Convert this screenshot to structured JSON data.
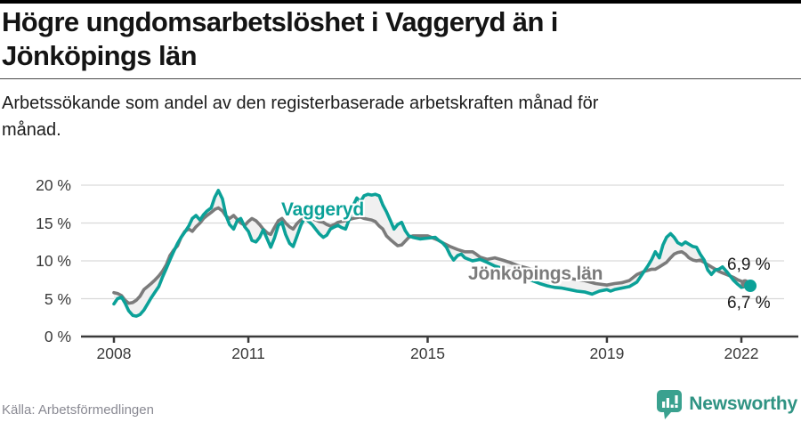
{
  "header": {
    "title": "Högre ungdomsarbetslöshet i Vaggeryd än i Jönköpings län",
    "subtitle": "Arbetssökande som andel av den registerbaserade arbetskraften månad för månad."
  },
  "footer": {
    "source": "Källa: Arbetsförmedlingen",
    "brand": "Newsworthy"
  },
  "colors": {
    "vaggeryd_line": "#0ba198",
    "jonkoping_line": "#7b7b7b",
    "band_fill": "#f0f0f0",
    "gridline": "#d9d9d9",
    "axis": "#3a3a3a",
    "brand_teal": "#3aa18f"
  },
  "chart_data": {
    "type": "line",
    "title": "Högre ungdomsarbetslöshet i Vaggeryd än i Jönköpings län",
    "xlabel": "",
    "ylabel": "",
    "xlim": [
      2008,
      2022.4
    ],
    "ylim": [
      0,
      20
    ],
    "grid": true,
    "legend_position": "inline-labels",
    "y_axis": {
      "unit": "%",
      "ticks": [
        {
          "value": 0,
          "label": "0 %"
        },
        {
          "value": 5,
          "label": "5 %"
        },
        {
          "value": 10,
          "label": "10 %"
        },
        {
          "value": 15,
          "label": "15 %"
        },
        {
          "value": 20,
          "label": "20 %"
        }
      ]
    },
    "x_axis": {
      "ticks": [
        {
          "year": 2008,
          "label": "2008"
        },
        {
          "year": 2011,
          "label": "2011"
        },
        {
          "year": 2015,
          "label": "2015"
        },
        {
          "year": 2019,
          "label": "2019"
        },
        {
          "year": 2022,
          "label": "2022"
        }
      ]
    },
    "series": [
      {
        "name": "Vaggeryd",
        "color": "#0ba198",
        "last_value": 6.7,
        "last_value_label": "6,7 %",
        "points": [
          [
            2008.0,
            4.3
          ],
          [
            2008.08,
            5.0
          ],
          [
            2008.17,
            5.2
          ],
          [
            2008.25,
            4.4
          ],
          [
            2008.33,
            3.4
          ],
          [
            2008.42,
            2.8
          ],
          [
            2008.5,
            2.7
          ],
          [
            2008.58,
            2.9
          ],
          [
            2008.67,
            3.5
          ],
          [
            2008.75,
            4.3
          ],
          [
            2008.83,
            5.1
          ],
          [
            2008.92,
            5.9
          ],
          [
            2009.0,
            6.6
          ],
          [
            2009.08,
            7.8
          ],
          [
            2009.17,
            9.0
          ],
          [
            2009.25,
            10.1
          ],
          [
            2009.33,
            11.2
          ],
          [
            2009.42,
            12.3
          ],
          [
            2009.5,
            13.1
          ],
          [
            2009.58,
            13.8
          ],
          [
            2009.67,
            14.6
          ],
          [
            2009.75,
            15.6
          ],
          [
            2009.83,
            16.0
          ],
          [
            2009.92,
            15.4
          ],
          [
            2010.0,
            16.1
          ],
          [
            2010.08,
            16.6
          ],
          [
            2010.17,
            17.0
          ],
          [
            2010.25,
            18.4
          ],
          [
            2010.33,
            19.3
          ],
          [
            2010.42,
            18.2
          ],
          [
            2010.5,
            16.0
          ],
          [
            2010.58,
            14.8
          ],
          [
            2010.67,
            14.2
          ],
          [
            2010.75,
            15.3
          ],
          [
            2010.83,
            15.6
          ],
          [
            2010.92,
            14.5
          ],
          [
            2011.0,
            13.9
          ],
          [
            2011.08,
            12.7
          ],
          [
            2011.17,
            12.5
          ],
          [
            2011.25,
            13.1
          ],
          [
            2011.33,
            14.1
          ],
          [
            2011.42,
            12.9
          ],
          [
            2011.5,
            11.8
          ],
          [
            2011.58,
            13.0
          ],
          [
            2011.67,
            14.7
          ],
          [
            2011.75,
            15.1
          ],
          [
            2011.83,
            13.5
          ],
          [
            2011.92,
            12.3
          ],
          [
            2012.0,
            11.9
          ],
          [
            2012.08,
            13.2
          ],
          [
            2012.17,
            14.7
          ],
          [
            2012.25,
            15.6
          ],
          [
            2012.33,
            15.3
          ],
          [
            2012.42,
            14.8
          ],
          [
            2012.5,
            14.2
          ],
          [
            2012.58,
            13.6
          ],
          [
            2012.67,
            13.1
          ],
          [
            2012.75,
            13.4
          ],
          [
            2012.83,
            14.2
          ],
          [
            2012.92,
            14.5
          ],
          [
            2013.0,
            14.7
          ],
          [
            2013.08,
            14.4
          ],
          [
            2013.17,
            14.2
          ],
          [
            2013.25,
            15.5
          ],
          [
            2013.33,
            17.2
          ],
          [
            2013.42,
            18.3
          ],
          [
            2013.5,
            17.8
          ],
          [
            2013.58,
            18.6
          ],
          [
            2013.67,
            18.8
          ],
          [
            2013.75,
            18.7
          ],
          [
            2013.83,
            18.8
          ],
          [
            2013.92,
            18.6
          ],
          [
            2014.0,
            17.4
          ],
          [
            2014.08,
            16.5
          ],
          [
            2014.17,
            15.3
          ],
          [
            2014.25,
            14.2
          ],
          [
            2014.33,
            14.8
          ],
          [
            2014.42,
            15.1
          ],
          [
            2014.5,
            14.0
          ],
          [
            2014.58,
            13.3
          ],
          [
            2014.67,
            13.1
          ],
          [
            2014.83,
            12.9
          ],
          [
            2015.0,
            13.0
          ],
          [
            2015.17,
            13.1
          ],
          [
            2015.25,
            12.7
          ],
          [
            2015.33,
            12.4
          ],
          [
            2015.42,
            11.8
          ],
          [
            2015.5,
            10.8
          ],
          [
            2015.58,
            10.1
          ],
          [
            2015.67,
            10.7
          ],
          [
            2015.75,
            10.9
          ],
          [
            2015.83,
            10.4
          ],
          [
            2016.0,
            10.0
          ],
          [
            2016.17,
            10.2
          ],
          [
            2016.33,
            9.8
          ],
          [
            2016.5,
            9.3
          ],
          [
            2016.67,
            9.0
          ],
          [
            2016.83,
            8.6
          ],
          [
            2017.0,
            8.2
          ],
          [
            2017.17,
            7.8
          ],
          [
            2017.33,
            7.4
          ],
          [
            2017.5,
            7.0
          ],
          [
            2017.67,
            6.7
          ],
          [
            2017.83,
            6.5
          ],
          [
            2018.0,
            6.4
          ],
          [
            2018.17,
            6.2
          ],
          [
            2018.33,
            6.0
          ],
          [
            2018.5,
            5.9
          ],
          [
            2018.67,
            5.6
          ],
          [
            2018.83,
            6.0
          ],
          [
            2019.0,
            6.2
          ],
          [
            2019.08,
            6.0
          ],
          [
            2019.17,
            6.2
          ],
          [
            2019.33,
            6.4
          ],
          [
            2019.5,
            6.6
          ],
          [
            2019.67,
            7.2
          ],
          [
            2019.83,
            8.6
          ],
          [
            2019.92,
            9.4
          ],
          [
            2020.0,
            10.2
          ],
          [
            2020.08,
            11.2
          ],
          [
            2020.17,
            10.4
          ],
          [
            2020.25,
            12.1
          ],
          [
            2020.33,
            13.1
          ],
          [
            2020.42,
            13.6
          ],
          [
            2020.5,
            13.1
          ],
          [
            2020.58,
            12.4
          ],
          [
            2020.67,
            12.1
          ],
          [
            2020.75,
            12.5
          ],
          [
            2020.83,
            12.2
          ],
          [
            2020.92,
            11.9
          ],
          [
            2021.0,
            11.8
          ],
          [
            2021.08,
            10.9
          ],
          [
            2021.17,
            10.1
          ],
          [
            2021.25,
            8.8
          ],
          [
            2021.33,
            8.2
          ],
          [
            2021.42,
            8.8
          ],
          [
            2021.5,
            8.9
          ],
          [
            2021.58,
            9.2
          ],
          [
            2021.67,
            8.6
          ],
          [
            2021.75,
            8.0
          ],
          [
            2021.83,
            7.4
          ],
          [
            2021.92,
            6.9
          ],
          [
            2022.0,
            6.5
          ],
          [
            2022.08,
            6.6
          ],
          [
            2022.17,
            6.7
          ]
        ]
      },
      {
        "name": "Jönköpings län",
        "color": "#7b7b7b",
        "last_value": 6.9,
        "last_value_label": "6,9 %",
        "points": [
          [
            2008.0,
            5.8
          ],
          [
            2008.08,
            5.7
          ],
          [
            2008.17,
            5.4
          ],
          [
            2008.25,
            4.8
          ],
          [
            2008.33,
            4.4
          ],
          [
            2008.42,
            4.5
          ],
          [
            2008.5,
            4.8
          ],
          [
            2008.58,
            5.3
          ],
          [
            2008.67,
            6.2
          ],
          [
            2008.75,
            6.6
          ],
          [
            2008.83,
            7.0
          ],
          [
            2008.92,
            7.5
          ],
          [
            2009.0,
            8.0
          ],
          [
            2009.08,
            8.6
          ],
          [
            2009.17,
            9.5
          ],
          [
            2009.25,
            10.7
          ],
          [
            2009.33,
            11.4
          ],
          [
            2009.42,
            12.0
          ],
          [
            2009.5,
            13.1
          ],
          [
            2009.58,
            13.9
          ],
          [
            2009.67,
            14.2
          ],
          [
            2009.75,
            13.9
          ],
          [
            2009.83,
            14.5
          ],
          [
            2009.92,
            15.0
          ],
          [
            2010.0,
            15.6
          ],
          [
            2010.08,
            16.0
          ],
          [
            2010.17,
            16.4
          ],
          [
            2010.25,
            16.8
          ],
          [
            2010.33,
            17.0
          ],
          [
            2010.42,
            16.6
          ],
          [
            2010.5,
            15.9
          ],
          [
            2010.58,
            15.6
          ],
          [
            2010.67,
            16.0
          ],
          [
            2010.75,
            15.5
          ],
          [
            2010.83,
            15.0
          ],
          [
            2010.92,
            14.7
          ],
          [
            2011.0,
            15.2
          ],
          [
            2011.08,
            15.6
          ],
          [
            2011.17,
            15.3
          ],
          [
            2011.25,
            14.8
          ],
          [
            2011.33,
            14.2
          ],
          [
            2011.42,
            13.7
          ],
          [
            2011.5,
            13.5
          ],
          [
            2011.58,
            14.4
          ],
          [
            2011.67,
            15.3
          ],
          [
            2011.75,
            15.6
          ],
          [
            2011.83,
            15.0
          ],
          [
            2011.92,
            14.5
          ],
          [
            2012.0,
            14.2
          ],
          [
            2012.08,
            14.9
          ],
          [
            2012.17,
            15.4
          ],
          [
            2012.25,
            15.6
          ],
          [
            2012.33,
            15.5
          ],
          [
            2012.42,
            15.6
          ],
          [
            2012.5,
            15.4
          ],
          [
            2012.58,
            15.2
          ],
          [
            2012.67,
            15.1
          ],
          [
            2012.75,
            14.8
          ],
          [
            2012.83,
            14.6
          ],
          [
            2012.92,
            14.8
          ],
          [
            2013.0,
            15.1
          ],
          [
            2013.17,
            15.3
          ],
          [
            2013.33,
            15.6
          ],
          [
            2013.5,
            15.8
          ],
          [
            2013.58,
            15.6
          ],
          [
            2013.75,
            15.4
          ],
          [
            2013.83,
            15.2
          ],
          [
            2013.92,
            14.6
          ],
          [
            2014.0,
            14.2
          ],
          [
            2014.08,
            13.3
          ],
          [
            2014.17,
            12.8
          ],
          [
            2014.25,
            12.4
          ],
          [
            2014.33,
            12.0
          ],
          [
            2014.42,
            12.1
          ],
          [
            2014.5,
            12.6
          ],
          [
            2014.58,
            13.1
          ],
          [
            2014.67,
            13.3
          ],
          [
            2014.83,
            13.3
          ],
          [
            2015.0,
            13.3
          ],
          [
            2015.17,
            12.9
          ],
          [
            2015.25,
            12.7
          ],
          [
            2015.33,
            12.4
          ],
          [
            2015.5,
            11.9
          ],
          [
            2015.67,
            11.5
          ],
          [
            2015.83,
            11.2
          ],
          [
            2016.0,
            11.2
          ],
          [
            2016.08,
            10.9
          ],
          [
            2016.17,
            10.5
          ],
          [
            2016.33,
            10.2
          ],
          [
            2016.5,
            10.4
          ],
          [
            2016.67,
            10.1
          ],
          [
            2016.83,
            9.8
          ],
          [
            2017.0,
            9.4
          ],
          [
            2017.25,
            9.0
          ],
          [
            2017.5,
            8.6
          ],
          [
            2017.75,
            8.2
          ],
          [
            2018.0,
            7.9
          ],
          [
            2018.25,
            7.6
          ],
          [
            2018.5,
            7.4
          ],
          [
            2018.75,
            7.0
          ],
          [
            2019.0,
            6.8
          ],
          [
            2019.17,
            7.0
          ],
          [
            2019.33,
            7.1
          ],
          [
            2019.5,
            7.4
          ],
          [
            2019.67,
            8.2
          ],
          [
            2019.83,
            8.6
          ],
          [
            2020.0,
            8.9
          ],
          [
            2020.08,
            8.9
          ],
          [
            2020.17,
            9.2
          ],
          [
            2020.33,
            9.8
          ],
          [
            2020.42,
            10.4
          ],
          [
            2020.5,
            10.9
          ],
          [
            2020.58,
            11.1
          ],
          [
            2020.67,
            11.2
          ],
          [
            2020.75,
            10.9
          ],
          [
            2020.83,
            10.4
          ],
          [
            2020.92,
            10.1
          ],
          [
            2021.0,
            10.0
          ],
          [
            2021.08,
            10.1
          ],
          [
            2021.17,
            9.8
          ],
          [
            2021.25,
            9.5
          ],
          [
            2021.33,
            9.2
          ],
          [
            2021.42,
            8.9
          ],
          [
            2021.5,
            8.6
          ],
          [
            2021.58,
            8.4
          ],
          [
            2021.67,
            8.2
          ],
          [
            2021.75,
            8.0
          ],
          [
            2021.83,
            7.8
          ],
          [
            2021.92,
            7.5
          ],
          [
            2022.0,
            7.3
          ],
          [
            2022.08,
            7.1
          ],
          [
            2022.17,
            6.9
          ]
        ]
      }
    ]
  }
}
